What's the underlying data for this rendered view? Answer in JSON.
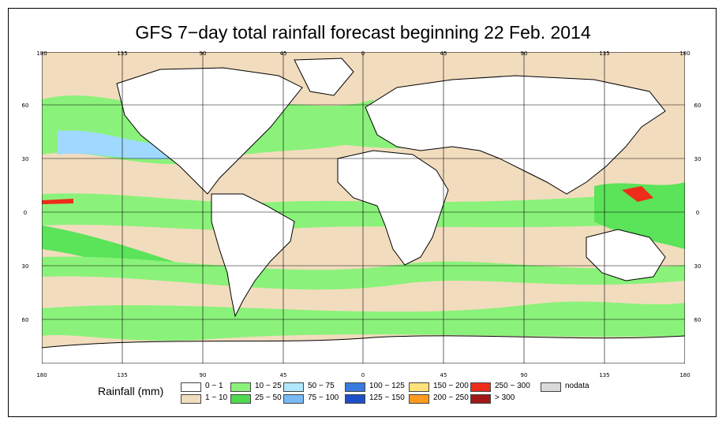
{
  "title": "GFS 7−day total rainfall forecast beginning 22 Feb. 2014",
  "map": {
    "lon_ticks": [
      "180",
      "135",
      "90",
      "45",
      "0",
      "45",
      "90",
      "135",
      "180"
    ],
    "lat_ticks": [
      "60",
      "30",
      "0",
      "30",
      "60"
    ],
    "colors": {
      "ocean_dry": "#f2dcbe",
      "light": "#8af27a",
      "moderate": "#5be35a",
      "heavy": "#9fd9ff",
      "land": "#ffffff"
    }
  },
  "legend": {
    "title": "Rainfall (mm)",
    "items": [
      {
        "label": "0 − 1",
        "color": "#ffffff"
      },
      {
        "label": "1 − 10",
        "color": "#f2dcbe"
      },
      {
        "label": "10 − 25",
        "color": "#8af27a"
      },
      {
        "label": "25 − 50",
        "color": "#4fd94f"
      },
      {
        "label": "50 − 75",
        "color": "#b2e8ff"
      },
      {
        "label": "75 − 100",
        "color": "#79b9f5"
      },
      {
        "label": "100 − 125",
        "color": "#3a7be0"
      },
      {
        "label": "125 − 150",
        "color": "#1f4fc7"
      },
      {
        "label": "150 − 200",
        "color": "#ffe27a"
      },
      {
        "label": "200 − 250",
        "color": "#ff9a1f"
      },
      {
        "label": "250 − 300",
        "color": "#ee2c1a"
      },
      {
        "label": "> 300",
        "color": "#a01818"
      },
      {
        "label": "nodata",
        "color": "#d9d9d9"
      }
    ]
  }
}
